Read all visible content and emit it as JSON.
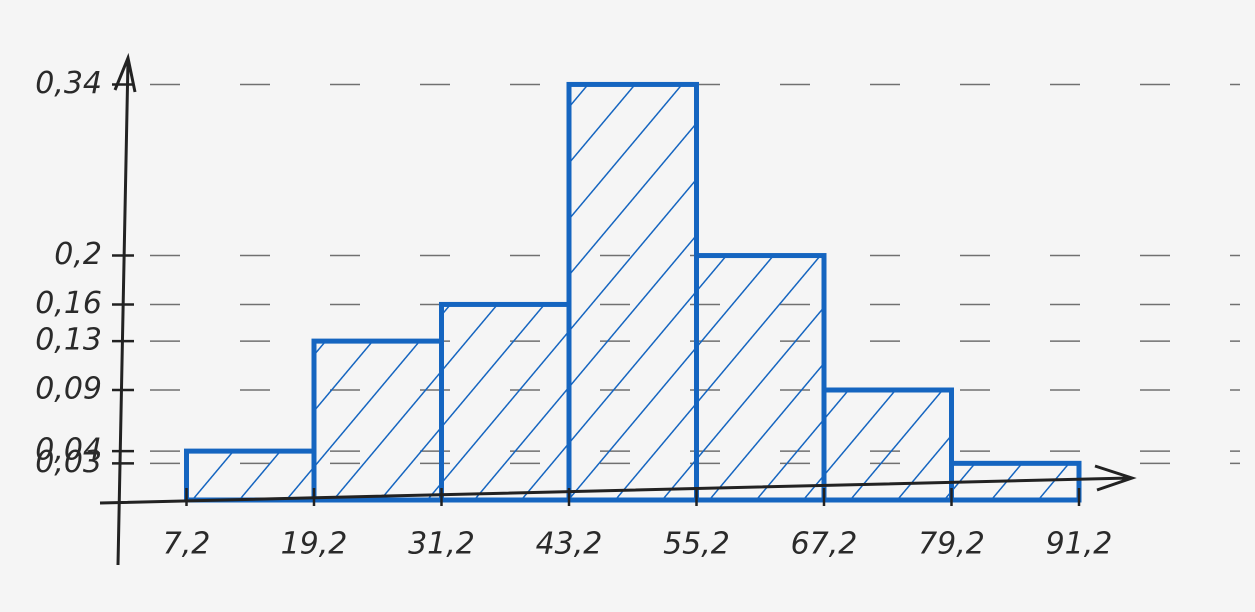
{
  "chart_data": {
    "type": "histogram",
    "bins": [
      7.2,
      19.2,
      31.2,
      43.2,
      55.2,
      67.2,
      79.2,
      91.2
    ],
    "values": [
      0.04,
      0.13,
      0.16,
      0.34,
      0.2,
      0.09,
      0.03
    ],
    "color": "#1565c0",
    "xlim": [
      0,
      96
    ],
    "ylim": [
      0,
      0.36
    ],
    "xticks": [
      {
        "value": 7.2,
        "label": "7,2"
      },
      {
        "value": 19.2,
        "label": "19,2"
      },
      {
        "value": 31.2,
        "label": "31,2"
      },
      {
        "value": 43.2,
        "label": "43,2"
      },
      {
        "value": 55.2,
        "label": "55,2"
      },
      {
        "value": 67.2,
        "label": "67,2"
      },
      {
        "value": 79.2,
        "label": "79,2"
      },
      {
        "value": 91.2,
        "label": "91,2"
      }
    ],
    "yticks": [
      {
        "value": 0.03,
        "label": "0,03"
      },
      {
        "value": 0.04,
        "label": "0,04"
      },
      {
        "value": 0.09,
        "label": "0,09"
      },
      {
        "value": 0.13,
        "label": "0,13"
      },
      {
        "value": 0.16,
        "label": "0,16"
      },
      {
        "value": 0.2,
        "label": "0,2"
      },
      {
        "value": 0.34,
        "label": "0,34"
      }
    ],
    "grid": true
  }
}
